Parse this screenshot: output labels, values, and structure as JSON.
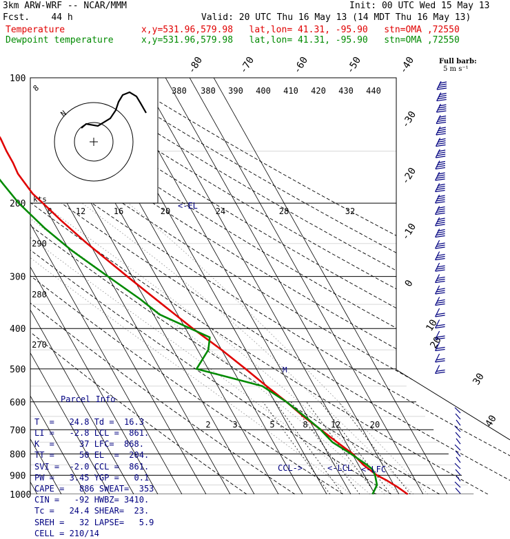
{
  "header": {
    "model": "3km ARW-WRF -- NCAR/MMM",
    "init": "Init: 00 UTC Wed 15 May 13",
    "fcst": "Fcst.    44 h",
    "valid": "Valid: 20 UTC Thu 16 May 13 (14 MDT Thu 16 May 13)",
    "temp_label": "Temperature",
    "temp_loc": "x,y=531.96,579.98   lat,lon= 41.31, -95.90   stn=OMA ,72550",
    "dew_label": "Dewpoint temperature",
    "dew_loc": "x,y=531.96,579.98   lat,lon= 41.31, -95.90   stn=OMA ,72550"
  },
  "colors": {
    "temperature": "#e00000",
    "dewpoint": "#008a00",
    "parcel_text": "#000080",
    "wind_barbs": "#000080"
  },
  "chart_data": {
    "type": "skew-t",
    "pressure_levels": [
      100,
      200,
      300,
      400,
      500,
      600,
      700,
      800,
      900,
      1000
    ],
    "skewed_isotherm_labels": [
      "-80",
      "-70",
      "-60",
      "-50",
      "-40",
      "-30",
      "-20",
      "-10",
      "0",
      "10",
      "20",
      "30",
      "40"
    ],
    "theta_labels": [
      "380",
      "390",
      "400",
      "410",
      "420",
      "430",
      "440"
    ],
    "theta_labels_left": [
      "290",
      "280",
      "270"
    ],
    "mixing_ratio_labels": [
      "2",
      "3",
      "5",
      "8",
      "12",
      "20"
    ],
    "hodograph": {
      "units": "kts",
      "ring_labels": [
        "8",
        "12",
        "16",
        "20",
        "24",
        "28",
        "32"
      ],
      "scale_labels": [
        "8",
        "N"
      ]
    },
    "level_markers": {
      "el": "<-EL",
      "ccl": "CCL->",
      "lcl": "<-LCL",
      "lfc": "<-LFC",
      "m": "M"
    },
    "barb_legend": [
      "Full barb:",
      "5 m s⁻¹"
    ],
    "series": [
      {
        "name": "Temperature",
        "color": "#e00000",
        "points": [
          [
            1000,
            23.6
          ],
          [
            960,
            21.0
          ],
          [
            925,
            18.0
          ],
          [
            900,
            15.2
          ],
          [
            870,
            13.3
          ],
          [
            850,
            12.1
          ],
          [
            800,
            10.2
          ],
          [
            750,
            6.4
          ],
          [
            700,
            2.6
          ],
          [
            650,
            -1.6
          ],
          [
            600,
            -5.2
          ],
          [
            550,
            -9.8
          ],
          [
            500,
            -14.5
          ],
          [
            450,
            -20.0
          ],
          [
            400,
            -27.0
          ],
          [
            350,
            -34.0
          ],
          [
            300,
            -42.0
          ],
          [
            250,
            -51.0
          ],
          [
            220,
            -56.5
          ],
          [
            200,
            -60.0
          ],
          [
            190,
            -62.0
          ],
          [
            170,
            -63.5
          ],
          [
            160,
            -63.0
          ],
          [
            150,
            -63.0
          ],
          [
            140,
            -62.5
          ],
          [
            130,
            -63.0
          ],
          [
            120,
            -64.0
          ],
          [
            110,
            -64.0
          ],
          [
            100,
            -64.5
          ]
        ]
      },
      {
        "name": "Dewpoint temperature",
        "color": "#008a00",
        "points": [
          [
            1000,
            9.0
          ],
          [
            950,
            13.0
          ],
          [
            900,
            14.5
          ],
          [
            870,
            14.7
          ],
          [
            850,
            13.5
          ],
          [
            800,
            9.5
          ],
          [
            750,
            4.5
          ],
          [
            700,
            2.5
          ],
          [
            650,
            -1.0
          ],
          [
            600,
            -5.2
          ],
          [
            550,
            -11.5
          ],
          [
            500,
            -34.8
          ],
          [
            450,
            -25.5
          ],
          [
            420,
            -22.0
          ],
          [
            400,
            -28.0
          ],
          [
            370,
            -37.5
          ],
          [
            340,
            -42.0
          ],
          [
            300,
            -50.0
          ],
          [
            260,
            -59.0
          ],
          [
            230,
            -65.0
          ],
          [
            200,
            -70.0
          ],
          [
            180,
            -72.0
          ],
          [
            160,
            -74.0
          ],
          [
            140,
            -75.0
          ],
          [
            120,
            -76.0
          ],
          [
            100,
            -77.0
          ]
        ]
      }
    ]
  },
  "parcel_info": {
    "title": "Parcel Info",
    "rows": [
      "T  =   24.8 Td =  16.3",
      "LI =   -2.8 LCL =  861.",
      "K  =     37 LFC=  868.",
      "TT =     50 EL  =  204.",
      "SVI =  -2.0 CCL =  861.",
      "PW =   3.45 YGP =   0.1",
      "CAPE =   886 SWEAT=  353",
      "CIN =   -92 HWBZ= 3410.",
      "Tc =   24.4 SHEAR=  23.",
      "SREH =   32 LAPSE=   5.9",
      "CELL = 210/14"
    ]
  }
}
